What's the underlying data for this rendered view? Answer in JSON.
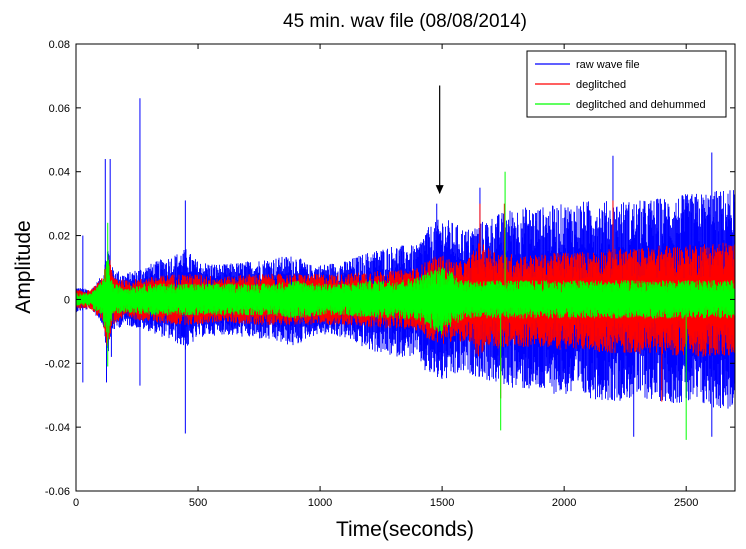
{
  "chart_data": {
    "type": "line",
    "title": "45 min. wav file (08/08/2014)",
    "xlabel": "Time(seconds)",
    "ylabel": "Amplitude",
    "xlim": [
      0,
      2700
    ],
    "ylim": [
      -0.06,
      0.08
    ],
    "xticks": [
      0,
      500,
      1000,
      1500,
      2000,
      2500
    ],
    "yticks": [
      -0.06,
      -0.04,
      -0.02,
      0,
      0.02,
      0.04,
      0.06,
      0.08
    ],
    "xtick_labels": [
      "0",
      "500",
      "1000",
      "1500",
      "2000",
      "2500"
    ],
    "ytick_labels": [
      "-0.06",
      "-0.04",
      "-0.02",
      "0",
      "0.02",
      "0.04",
      "0.06",
      "0.08"
    ],
    "grid": false,
    "legend_position": "top-right",
    "annotation": {
      "type": "arrow",
      "x": 1490,
      "y_from": 0.067,
      "y_to": 0.033
    },
    "series": [
      {
        "name": "raw wave file",
        "color": "#0000ff",
        "envelope": {
          "x": [
            0,
            60,
            110,
            130,
            150,
            200,
            300,
            360,
            400,
            450,
            500,
            600,
            700,
            800,
            900,
            950,
            1000,
            1100,
            1200,
            1300,
            1400,
            1430,
            1450,
            1500,
            1600,
            1700,
            1800,
            1900,
            2000,
            2100,
            2200,
            2300,
            2400,
            2500,
            2600,
            2700
          ],
          "upper": [
            0.004,
            0.003,
            0.008,
            0.018,
            0.01,
            0.008,
            0.011,
            0.013,
            0.014,
            0.016,
            0.012,
            0.011,
            0.012,
            0.013,
            0.014,
            0.011,
            0.011,
            0.012,
            0.015,
            0.017,
            0.017,
            0.022,
            0.023,
            0.026,
            0.022,
            0.026,
            0.029,
            0.029,
            0.03,
            0.031,
            0.031,
            0.031,
            0.032,
            0.033,
            0.034,
            0.035
          ],
          "lower": [
            -0.004,
            -0.003,
            -0.008,
            -0.018,
            -0.01,
            -0.008,
            -0.01,
            -0.012,
            -0.013,
            -0.016,
            -0.012,
            -0.011,
            -0.012,
            -0.013,
            -0.015,
            -0.012,
            -0.011,
            -0.012,
            -0.016,
            -0.018,
            -0.018,
            -0.023,
            -0.024,
            -0.026,
            -0.023,
            -0.026,
            -0.028,
            -0.029,
            -0.03,
            -0.031,
            -0.032,
            -0.031,
            -0.032,
            -0.033,
            -0.034,
            -0.035
          ]
        },
        "spikes": [
          {
            "x": 28,
            "y": 0.02
          },
          {
            "x": 28,
            "y": -0.026
          },
          {
            "x": 120,
            "y": 0.044
          },
          {
            "x": 125,
            "y": -0.026
          },
          {
            "x": 140,
            "y": 0.044
          },
          {
            "x": 145,
            "y": -0.018
          },
          {
            "x": 262,
            "y": 0.063
          },
          {
            "x": 262,
            "y": -0.027
          },
          {
            "x": 448,
            "y": 0.031
          },
          {
            "x": 448,
            "y": -0.042
          },
          {
            "x": 1478,
            "y": 0.03
          },
          {
            "x": 1655,
            "y": 0.035
          },
          {
            "x": 2200,
            "y": 0.045
          },
          {
            "x": 2285,
            "y": -0.043
          },
          {
            "x": 2605,
            "y": 0.046
          },
          {
            "x": 2605,
            "y": -0.043
          }
        ]
      },
      {
        "name": "deglitched",
        "color": "#ff0000",
        "envelope": {
          "x": [
            0,
            60,
            110,
            130,
            150,
            200,
            300,
            400,
            500,
            600,
            700,
            800,
            900,
            1000,
            1100,
            1200,
            1300,
            1400,
            1450,
            1500,
            1550,
            1600,
            1650,
            1700,
            1800,
            1900,
            2000,
            2100,
            2200,
            2300,
            2400,
            2500,
            2600,
            2700
          ],
          "upper": [
            0.003,
            0.003,
            0.007,
            0.016,
            0.008,
            0.006,
            0.007,
            0.008,
            0.008,
            0.007,
            0.008,
            0.008,
            0.008,
            0.008,
            0.008,
            0.009,
            0.009,
            0.01,
            0.013,
            0.014,
            0.012,
            0.012,
            0.018,
            0.016,
            0.014,
            0.014,
            0.015,
            0.015,
            0.016,
            0.016,
            0.017,
            0.017,
            0.018,
            0.018
          ],
          "lower": [
            -0.003,
            -0.003,
            -0.007,
            -0.016,
            -0.008,
            -0.006,
            -0.007,
            -0.008,
            -0.008,
            -0.007,
            -0.008,
            -0.008,
            -0.008,
            -0.008,
            -0.008,
            -0.009,
            -0.009,
            -0.01,
            -0.013,
            -0.014,
            -0.013,
            -0.014,
            -0.018,
            -0.016,
            -0.015,
            -0.015,
            -0.016,
            -0.016,
            -0.017,
            -0.017,
            -0.017,
            -0.018,
            -0.018,
            -0.018
          ]
        },
        "spikes": [
          {
            "x": 1655,
            "y": 0.03
          },
          {
            "x": 1755,
            "y": 0.03
          },
          {
            "x": 1740,
            "y": -0.031
          },
          {
            "x": 2200,
            "y": 0.031
          },
          {
            "x": 2400,
            "y": -0.032
          }
        ]
      },
      {
        "name": "deglitched and dehummed",
        "color": "#00ff00",
        "envelope": {
          "x": [
            0,
            60,
            110,
            130,
            150,
            200,
            300,
            400,
            500,
            600,
            700,
            800,
            900,
            1000,
            1100,
            1200,
            1300,
            1400,
            1450,
            1500,
            1550,
            1600,
            1700,
            1800,
            1900,
            2000,
            2100,
            2200,
            2300,
            2400,
            2500,
            2600,
            2700
          ],
          "upper": [
            0.002,
            0.002,
            0.006,
            0.014,
            0.005,
            0.004,
            0.005,
            0.005,
            0.005,
            0.005,
            0.005,
            0.005,
            0.006,
            0.005,
            0.005,
            0.006,
            0.006,
            0.007,
            0.009,
            0.011,
            0.008,
            0.006,
            0.006,
            0.006,
            0.006,
            0.006,
            0.006,
            0.006,
            0.006,
            0.006,
            0.006,
            0.006,
            0.006
          ],
          "lower": [
            -0.002,
            -0.002,
            -0.006,
            -0.014,
            -0.005,
            -0.004,
            -0.005,
            -0.005,
            -0.005,
            -0.005,
            -0.005,
            -0.005,
            -0.006,
            -0.005,
            -0.005,
            -0.006,
            -0.006,
            -0.007,
            -0.009,
            -0.011,
            -0.008,
            -0.006,
            -0.006,
            -0.006,
            -0.006,
            -0.006,
            -0.006,
            -0.006,
            -0.006,
            -0.006,
            -0.006,
            -0.006,
            -0.006
          ]
        },
        "spikes": [
          {
            "x": 130,
            "y": 0.024
          },
          {
            "x": 130,
            "y": -0.021
          },
          {
            "x": 1758,
            "y": 0.04
          },
          {
            "x": 1740,
            "y": -0.041
          },
          {
            "x": 2500,
            "y": -0.044
          }
        ]
      }
    ]
  }
}
